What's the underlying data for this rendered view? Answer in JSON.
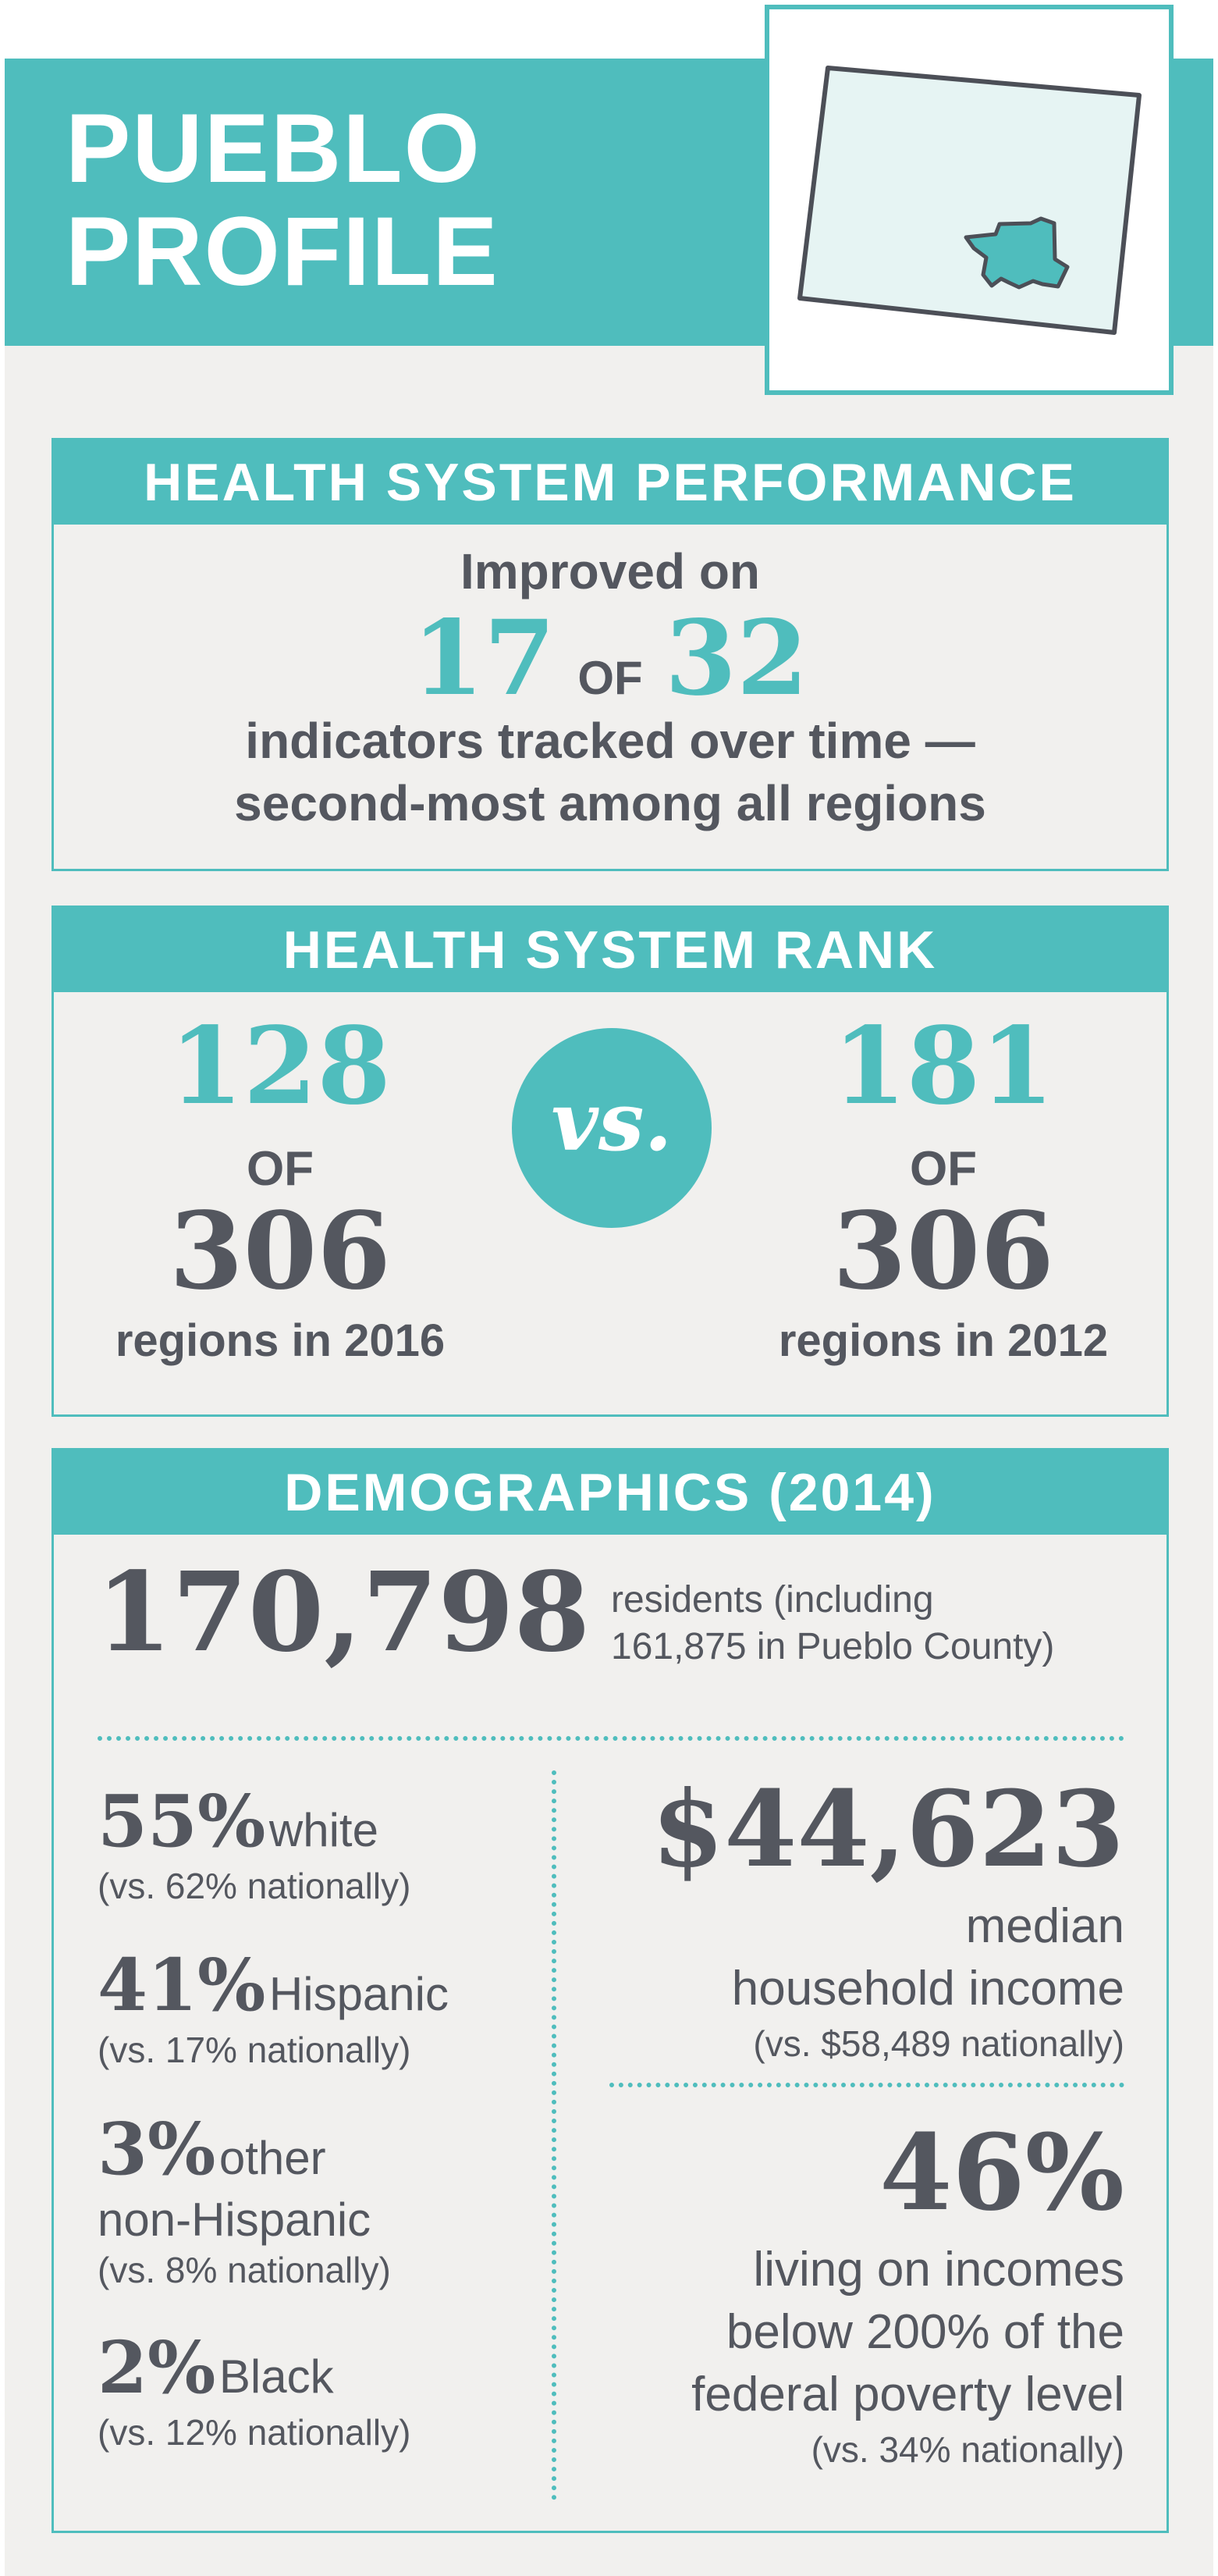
{
  "header": {
    "title_line1": "PUEBLO",
    "title_line2": "PROFILE",
    "map_icon": "colorado-state-map-icon"
  },
  "performance": {
    "heading": "HEALTH SYSTEM PERFORMANCE",
    "intro": "Improved on",
    "improved": "17",
    "of_word": "OF",
    "total": "32",
    "line1": "indicators tracked over time —",
    "line2": "second-most among all regions"
  },
  "rank": {
    "heading": "HEALTH SYSTEM RANK",
    "left": {
      "rank": "128",
      "of_word": "OF",
      "total": "306",
      "caption": "regions in 2016"
    },
    "vs_label": "vs.",
    "right": {
      "rank": "181",
      "of_word": "OF",
      "total": "306",
      "caption": "regions in 2012"
    }
  },
  "demographics": {
    "heading": "DEMOGRAPHICS (2014)",
    "population": "170,798",
    "population_note_line1": "residents (including",
    "population_note_line2": "161,875 in Pueblo County)",
    "groups": [
      {
        "pct": "55%",
        "label": "white",
        "label2": "",
        "national": "(vs. 62% nationally)"
      },
      {
        "pct": "41%",
        "label": "Hispanic",
        "label2": "",
        "national": "(vs. 17% nationally)"
      },
      {
        "pct": "3%",
        "label": "other",
        "label2": "non-Hispanic",
        "national": "(vs. 8% nationally)"
      },
      {
        "pct": "2%",
        "label": "Black",
        "label2": "",
        "national": "(vs. 12% nationally)"
      }
    ],
    "income": {
      "value": "$44,623",
      "line1": "median",
      "line2": "household income",
      "national": "(vs. $58,489 nationally)"
    },
    "poverty": {
      "value": "46%",
      "line1": "living on incomes",
      "line2": "below 200% of the",
      "line3": "federal poverty level",
      "national": "(vs. 34% nationally)"
    }
  },
  "colors": {
    "accent": "#4fbdbd",
    "text": "#54575f",
    "background": "#f1f0ee"
  }
}
